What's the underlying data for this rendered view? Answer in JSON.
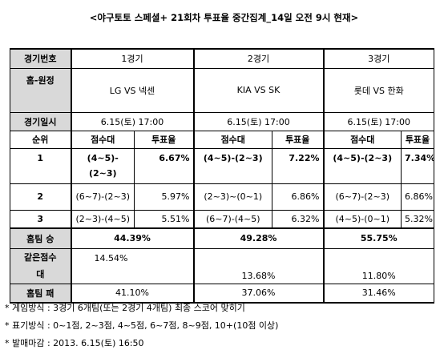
{
  "title": "<야구토토 스페셜+ 21회차 투표율 중간집계_14일 오전 9시 현재>",
  "table": {
    "row_game": {
      "label": "경기번호",
      "g1": "1경기",
      "g2": "2경기",
      "g3": "3경기"
    },
    "row_teams": {
      "label": "홈-원정",
      "g1": "LG VS 넥센",
      "g2": "KIA VS SK",
      "g3": "롯데 VS 한화"
    },
    "row_date": {
      "label": "경기일시",
      "g1": "6.15(토) 17:00",
      "g2": "6.15(토) 17:00",
      "g3": "6.15(토) 17:00"
    },
    "row_head": {
      "label": "순위",
      "score": "점수대",
      "rate": "투표율"
    },
    "ranks": [
      {
        "rank": "1",
        "g1_score_line1": "(4~5)-",
        "g1_score_line2": "(2~3)",
        "g1_rate": "6.67%",
        "g2_score": "(4~5)-(2~3)",
        "g2_rate": "7.22%",
        "g3_score": "(4~5)-(2~3)",
        "g3_rate": "7.34%"
      },
      {
        "rank": "2",
        "g1_score": "(6~7)-(2~3)",
        "g1_rate": "5.97%",
        "g2_score": "(2~3)~(0~1)",
        "g2_rate": "6.86%",
        "g3_score": "(6~7)-(2~3)",
        "g3_rate": "6.86%"
      },
      {
        "rank": "3",
        "g1_score": "(2~3)-(4~5)",
        "g1_rate": "5.51%",
        "g2_score": "(6~7)-(4~5)",
        "g2_rate": "6.32%",
        "g3_score": "(4~5)-(0~1)",
        "g3_rate": "5.32%"
      }
    ],
    "row_home_win": {
      "label": "홈팀 승",
      "g1": "44.39%",
      "g2": "49.28%",
      "g3": "55.75%"
    },
    "row_draw": {
      "label_line1": "같은점수",
      "label_line2": "대",
      "g1": "14.54%",
      "g2": "13.68%",
      "g3": "11.80%"
    },
    "row_home_loss": {
      "label": "홈팀 패",
      "g1": "41.10%",
      "g2": "37.06%",
      "g3": "31.46%"
    }
  },
  "notes": [
    "* 게임방식 : 3경기 6개팀(또는 2경기 4개팀) 최종 스코어 맞히기",
    "* 표기방식 : 0~1점, 2~3점, 4~5점, 6~7점, 8~9점, 10+(10점 이상)",
    "* 발매마감 : 2013. 6.15(토) 16:50"
  ]
}
